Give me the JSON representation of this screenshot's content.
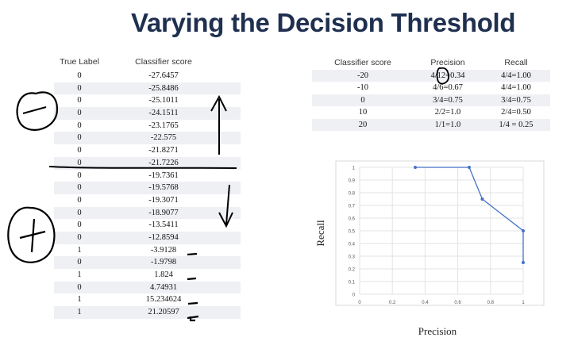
{
  "slide": {
    "title": "Varying the Decision Threshold"
  },
  "score_table": {
    "headers": [
      "True Label",
      "Classifier score"
    ],
    "rows": [
      [
        "0",
        "-27.6457"
      ],
      [
        "0",
        "-25.8486"
      ],
      [
        "0",
        "-25.1011"
      ],
      [
        "0",
        "-24.1511"
      ],
      [
        "0",
        "-23.1765"
      ],
      [
        "0",
        "-22.575"
      ],
      [
        "0",
        "-21.8271"
      ],
      [
        "0",
        "-21.7226"
      ],
      [
        "0",
        "-19.7361"
      ],
      [
        "0",
        "-19.5768"
      ],
      [
        "0",
        "-19.3071"
      ],
      [
        "0",
        "-18.9077"
      ],
      [
        "0",
        "-13.5411"
      ],
      [
        "0",
        "-12.8594"
      ],
      [
        "1",
        "-3.9128"
      ],
      [
        "0",
        "-1.9798"
      ],
      [
        "1",
        "1.824"
      ],
      [
        "0",
        "4.74931"
      ],
      [
        "1",
        "15.234624"
      ],
      [
        "1",
        "21.20597"
      ]
    ]
  },
  "pr_table": {
    "headers": [
      "Classifier score",
      "Precision",
      "Recall"
    ],
    "rows": [
      [
        "-20",
        "4/12=0.34",
        "4/4=1.00"
      ],
      [
        "-10",
        "4/6=0.67",
        "4/4=1.00"
      ],
      [
        "0",
        "3/4=0.75",
        "3/4=0.75"
      ],
      [
        "10",
        "2/2=1.0",
        "2/4=0.50"
      ],
      [
        "20",
        "1/1=1.0",
        "1/4 = 0.25"
      ]
    ]
  },
  "annotations": {
    "minus": "−",
    "plus": "+"
  },
  "chart_data": {
    "type": "line",
    "xlabel": "Precision",
    "ylabel": "Recall",
    "xlim": [
      0,
      1
    ],
    "ylim": [
      0,
      1
    ],
    "xticks": [
      "0",
      "0.2",
      "0.4",
      "0.6",
      "0.8",
      "1"
    ],
    "yticks": [
      "0",
      "0.1",
      "0.2",
      "0.3",
      "0.4",
      "0.5",
      "0.6",
      "0.7",
      "0.8",
      "0.9",
      "1"
    ],
    "points": [
      {
        "x": 0.34,
        "y": 1.0
      },
      {
        "x": 0.67,
        "y": 1.0
      },
      {
        "x": 0.75,
        "y": 0.75
      },
      {
        "x": 1.0,
        "y": 0.5
      },
      {
        "x": 1.0,
        "y": 0.25
      }
    ],
    "grid": true,
    "color": "#4472c4"
  }
}
